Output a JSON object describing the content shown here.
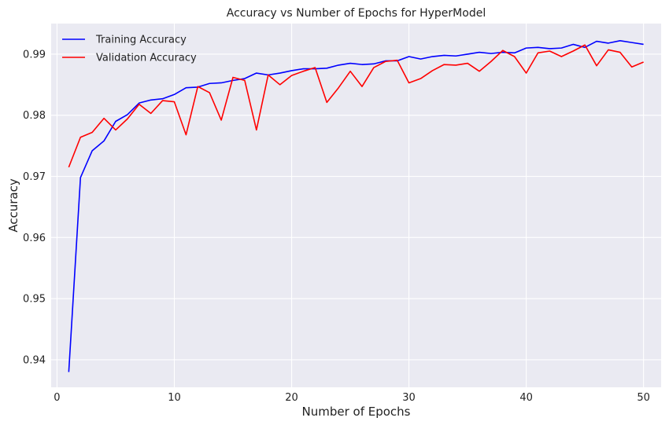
{
  "chart_data": {
    "type": "line",
    "title": "Accuracy vs Number of Epochs for HyperModel",
    "xlabel": "Number of Epochs",
    "ylabel": "Accuracy",
    "xlim": [
      -0.5,
      51.5
    ],
    "ylim": [
      0.9355,
      0.995
    ],
    "xticks": [
      0,
      10,
      20,
      30,
      40,
      50
    ],
    "yticks": [
      0.94,
      0.95,
      0.96,
      0.97,
      0.98,
      0.99
    ],
    "grid": true,
    "legend_position": "top-left",
    "background": "#eaeaf2",
    "x": [
      1,
      2,
      3,
      4,
      5,
      6,
      7,
      8,
      9,
      10,
      11,
      12,
      13,
      14,
      15,
      16,
      17,
      18,
      19,
      20,
      21,
      22,
      23,
      24,
      25,
      26,
      27,
      28,
      29,
      30,
      31,
      32,
      33,
      34,
      35,
      36,
      37,
      38,
      39,
      40,
      41,
      42,
      43,
      44,
      45,
      46,
      47,
      48,
      49,
      50
    ],
    "series": [
      {
        "name": "Training Accuracy",
        "color": "#0000ff",
        "values": [
          0.938,
          0.9698,
          0.9742,
          0.9758,
          0.979,
          0.9801,
          0.982,
          0.9825,
          0.9827,
          0.9834,
          0.9845,
          0.9846,
          0.9852,
          0.9853,
          0.9857,
          0.986,
          0.9869,
          0.9866,
          0.9869,
          0.9873,
          0.9876,
          0.9876,
          0.9877,
          0.9882,
          0.9885,
          0.9883,
          0.9884,
          0.9889,
          0.9889,
          0.9896,
          0.9892,
          0.9896,
          0.9898,
          0.9897,
          0.99,
          0.9903,
          0.9901,
          0.9903,
          0.9902,
          0.991,
          0.9911,
          0.9909,
          0.991,
          0.9916,
          0.9911,
          0.9921,
          0.9918,
          0.9922,
          0.9919,
          0.9916
        ]
      },
      {
        "name": "Validation Accuracy",
        "color": "#ff0000",
        "values": [
          0.9715,
          0.9764,
          0.9772,
          0.9795,
          0.9776,
          0.9794,
          0.9818,
          0.9803,
          0.9824,
          0.9822,
          0.9768,
          0.9847,
          0.9837,
          0.9792,
          0.9862,
          0.9857,
          0.9776,
          0.9866,
          0.985,
          0.9865,
          0.9872,
          0.9878,
          0.9821,
          0.9845,
          0.9872,
          0.9847,
          0.9878,
          0.9888,
          0.989,
          0.9853,
          0.986,
          0.9873,
          0.9883,
          0.9882,
          0.9885,
          0.9872,
          0.9888,
          0.9906,
          0.9896,
          0.9869,
          0.9902,
          0.9905,
          0.9896,
          0.9905,
          0.9915,
          0.9881,
          0.9907,
          0.9903,
          0.9879,
          0.9887
        ]
      }
    ]
  }
}
